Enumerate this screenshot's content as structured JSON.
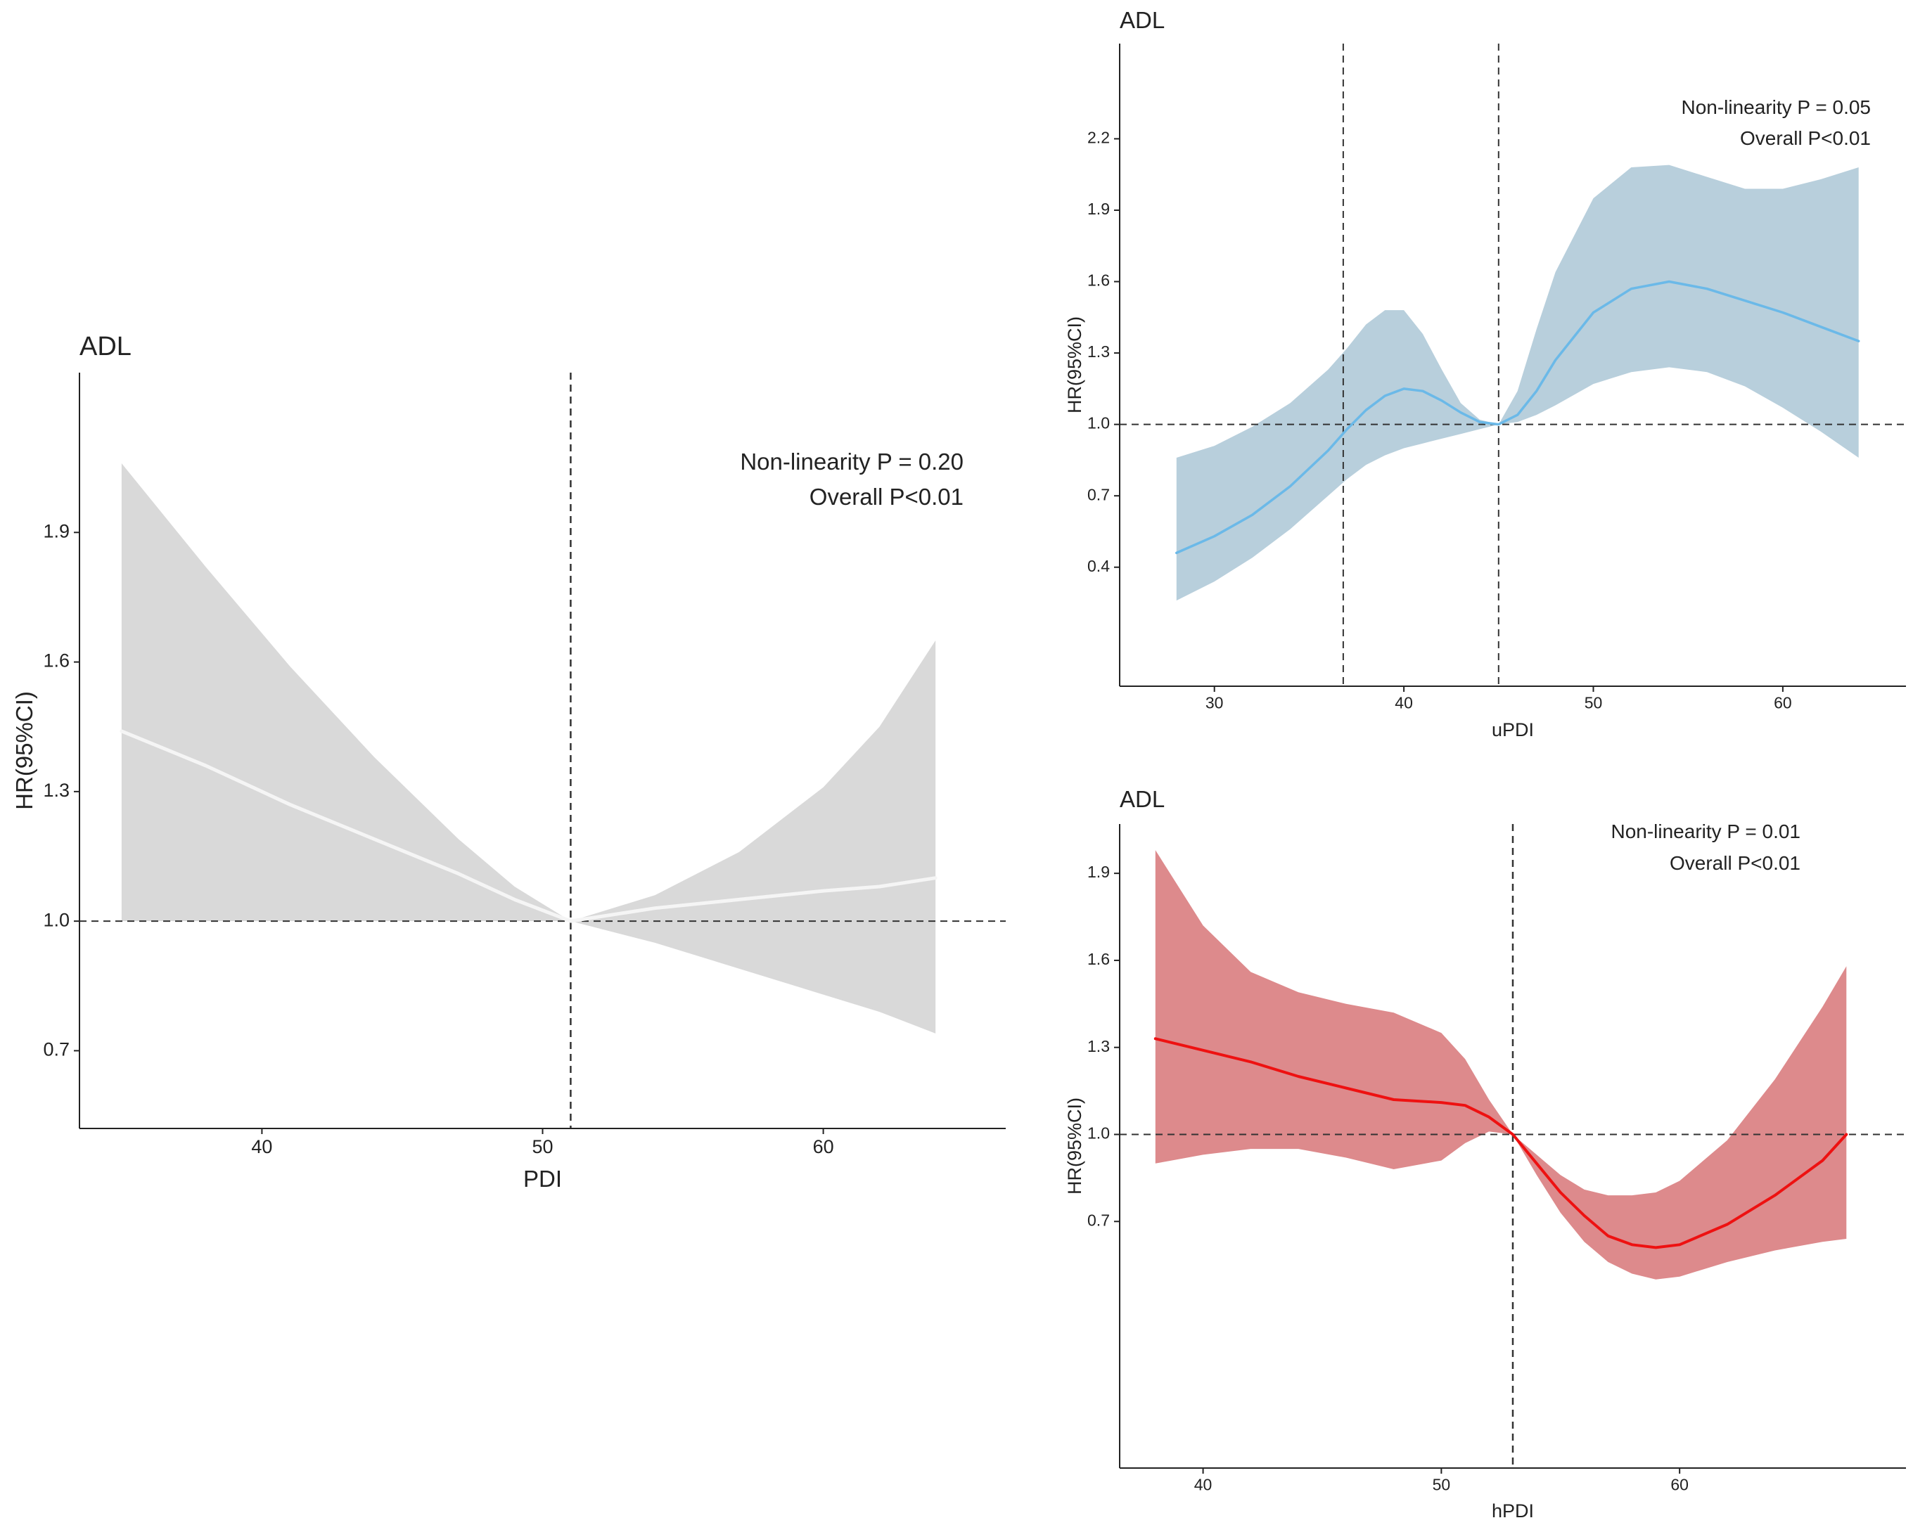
{
  "chart_data": [
    {
      "type": "line",
      "title": "ADL",
      "xlabel": "PDI",
      "ylabel": "HR(95%CI)",
      "xlim": [
        33.5,
        66.5
      ],
      "ylim": [
        0.52,
        2.27
      ],
      "xticks": [
        40,
        50,
        60
      ],
      "yticks": [
        0.7,
        1.0,
        1.3,
        1.6,
        1.9
      ],
      "ytick_labels": [
        "0.7",
        "1.0",
        "1.3",
        "1.6",
        "1.9"
      ],
      "reference_lines": {
        "x": [
          51
        ],
        "y": 1.0
      },
      "annotations": [
        "Non-linearity P = 0.20",
        "Overall P<0.01"
      ],
      "colors": {
        "line": "#f5f5f5",
        "band": "#d9d9d9"
      },
      "series": [
        {
          "name": "HR",
          "x": [
            35,
            38,
            41,
            44,
            47,
            49,
            51,
            54,
            57,
            60,
            62,
            64
          ],
          "y": [
            1.44,
            1.36,
            1.27,
            1.19,
            1.11,
            1.05,
            1.0,
            1.03,
            1.05,
            1.07,
            1.08,
            1.1
          ],
          "lower": [
            1.0,
            1.0,
            1.0,
            1.0,
            1.0,
            1.0,
            1.0,
            0.95,
            0.89,
            0.83,
            0.79,
            0.74
          ],
          "upper": [
            2.06,
            1.82,
            1.59,
            1.38,
            1.19,
            1.08,
            1.0,
            1.06,
            1.16,
            1.31,
            1.45,
            1.65
          ]
        }
      ]
    },
    {
      "type": "line",
      "title": "ADL",
      "xlabel": "uPDI",
      "ylabel": "HR(95%CI)",
      "xlim": [
        25,
        66.5
      ],
      "ylim": [
        -0.1,
        2.6
      ],
      "xticks": [
        30,
        40,
        50,
        60
      ],
      "yticks": [
        0.4,
        0.7,
        1.0,
        1.3,
        1.6,
        1.9,
        2.2
      ],
      "ytick_labels": [
        "0.4",
        "0.7",
        "1.0",
        "1.3",
        "1.6",
        "1.9",
        "2.2"
      ],
      "reference_lines": {
        "x": [
          36.8,
          45
        ],
        "y": 1.0
      },
      "annotations": [
        "Non-linearity P = 0.05",
        "Overall P<0.01"
      ],
      "colors": {
        "line": "#6bb9e8",
        "band": "#b8cfdc"
      },
      "series": [
        {
          "name": "HR",
          "x": [
            28,
            30,
            32,
            34,
            36,
            37,
            38,
            39,
            40,
            41,
            42,
            43,
            44,
            45,
            46,
            47,
            48,
            50,
            52,
            54,
            56,
            58,
            60,
            62,
            64
          ],
          "y": [
            0.46,
            0.53,
            0.62,
            0.74,
            0.89,
            0.98,
            1.06,
            1.12,
            1.15,
            1.14,
            1.1,
            1.05,
            1.01,
            1.0,
            1.04,
            1.14,
            1.27,
            1.47,
            1.57,
            1.6,
            1.57,
            1.52,
            1.47,
            1.41,
            1.35
          ],
          "lower": [
            0.26,
            0.34,
            0.44,
            0.56,
            0.7,
            0.77,
            0.83,
            0.87,
            0.9,
            0.92,
            0.94,
            0.96,
            0.98,
            1.0,
            1.01,
            1.04,
            1.08,
            1.17,
            1.22,
            1.24,
            1.22,
            1.16,
            1.07,
            0.97,
            0.86
          ],
          "upper": [
            0.86,
            0.91,
            0.99,
            1.09,
            1.23,
            1.32,
            1.42,
            1.48,
            1.48,
            1.38,
            1.23,
            1.09,
            1.02,
            1.0,
            1.14,
            1.4,
            1.64,
            1.95,
            2.08,
            2.09,
            2.04,
            1.99,
            1.99,
            2.03,
            2.08
          ]
        }
      ]
    },
    {
      "type": "line",
      "title": "ADL",
      "xlabel": "hPDI",
      "ylabel": "HR(95%CI)",
      "xlim": [
        36.5,
        69.5
      ],
      "ylim": [
        -0.15,
        2.07
      ],
      "xticks": [
        40,
        50,
        60
      ],
      "yticks": [
        0.7,
        1.0,
        1.3,
        1.6,
        1.9
      ],
      "ytick_labels": [
        "0.7",
        "1.0",
        "1.3",
        "1.6",
        "1.9"
      ],
      "reference_lines": {
        "x": [
          53
        ],
        "y": 1.0
      },
      "annotations": [
        "Non-linearity P = 0.01",
        "Overall P<0.01"
      ],
      "colors": {
        "line": "#ee1111",
        "band": "#dd8a8c"
      },
      "series": [
        {
          "name": "HR",
          "x": [
            38,
            40,
            42,
            44,
            46,
            48,
            50,
            51,
            52,
            53,
            54,
            55,
            56,
            57,
            58,
            59,
            60,
            62,
            64,
            66,
            67
          ],
          "y": [
            1.33,
            1.29,
            1.25,
            1.2,
            1.16,
            1.12,
            1.11,
            1.1,
            1.06,
            1.0,
            0.9,
            0.8,
            0.72,
            0.65,
            0.62,
            0.61,
            0.62,
            0.69,
            0.79,
            0.91,
            1.0
          ],
          "lower": [
            0.9,
            0.93,
            0.95,
            0.95,
            0.92,
            0.88,
            0.91,
            0.97,
            1.01,
            1.0,
            0.86,
            0.73,
            0.63,
            0.56,
            0.52,
            0.5,
            0.51,
            0.56,
            0.6,
            0.63,
            0.64
          ],
          "upper": [
            1.98,
            1.72,
            1.56,
            1.49,
            1.45,
            1.42,
            1.35,
            1.26,
            1.12,
            1.0,
            0.93,
            0.86,
            0.81,
            0.79,
            0.79,
            0.8,
            0.84,
            0.98,
            1.19,
            1.44,
            1.58
          ]
        }
      ]
    }
  ]
}
